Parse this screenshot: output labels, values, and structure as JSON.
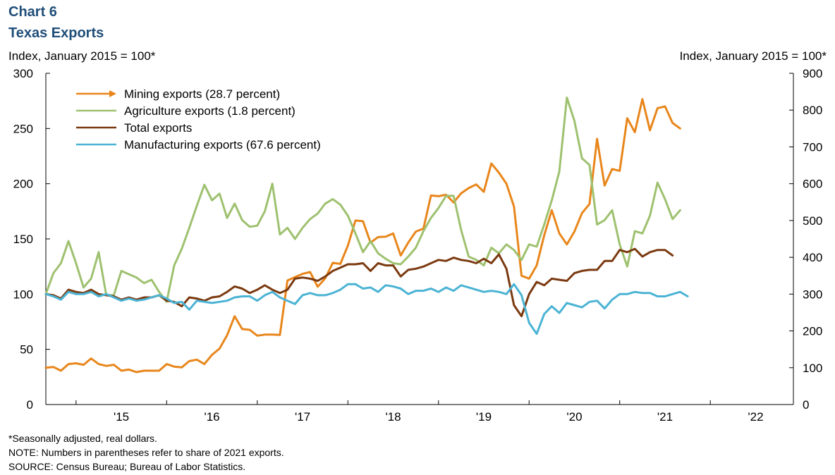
{
  "header": {
    "chart_number": "Chart 6",
    "title": "Texas Exports",
    "left_axis_label": "Index, January 2015 = 100*",
    "right_axis_label": "Index, January 2015 = 100*"
  },
  "footer": {
    "note1": "*Seasonally adjusted, real dollars.",
    "note2": "NOTE: Numbers in parentheses refer to share of 2021 exports.",
    "source": "SOURCE: Census Bureau; Bureau of Labor Statistics."
  },
  "chart_data": {
    "type": "line",
    "title": "Texas Exports",
    "x_tick_labels": [
      "'15",
      "'16",
      "'17",
      "'18",
      "'19",
      "'20",
      "'21",
      "'22"
    ],
    "x_tick_years": [
      2015,
      2016,
      2017,
      2018,
      2019,
      2020,
      2021,
      2022
    ],
    "x_range": {
      "start_year": 2014,
      "start_month": 9,
      "end_year": 2022,
      "end_month": 12
    },
    "left_axis": {
      "min": 0,
      "max": 300,
      "ticks": [
        0,
        50,
        100,
        150,
        200,
        250,
        300
      ]
    },
    "right_axis": {
      "min": 0,
      "max": 900,
      "ticks": [
        0,
        100,
        200,
        300,
        400,
        500,
        600,
        700,
        800,
        900
      ]
    },
    "legend_position": "top-left",
    "series": [
      {
        "name": "Mining exports (28.7 percent)",
        "color": "#e8861b",
        "axis": "right",
        "legend_marker": "arrow",
        "start": {
          "year": 2014,
          "month": 9
        },
        "values": [
          100,
          102,
          92,
          110,
          112,
          108,
          125,
          110,
          105,
          108,
          92,
          95,
          88,
          92,
          92,
          92,
          110,
          103,
          101,
          118,
          122,
          110,
          135,
          152,
          188,
          240,
          205,
          203,
          187,
          190,
          190,
          189,
          337,
          346,
          355,
          360,
          320,
          343,
          385,
          382,
          432,
          500,
          498,
          440,
          455,
          456,
          465,
          405,
          440,
          470,
          478,
          568,
          566,
          570,
          549,
          574,
          588,
          598,
          578,
          655,
          630,
          600,
          538,
          350,
          342,
          378,
          460,
          528,
          465,
          435,
          470,
          520,
          545,
          722,
          595,
          640,
          635,
          778,
          740,
          830,
          745,
          805,
          810,
          765,
          750
        ]
      },
      {
        "name": "Agriculture exports (1.8 percent)",
        "color": "#9ec16f",
        "axis": "left",
        "legend_marker": "line",
        "start": {
          "year": 2014,
          "month": 9
        },
        "values": [
          100,
          119,
          128,
          148,
          128,
          106,
          114,
          138,
          99,
          99,
          121,
          118,
          115,
          110,
          113,
          102,
          93,
          126,
          141,
          160,
          180,
          199,
          185,
          191,
          169,
          182,
          167,
          161,
          162,
          175,
          200,
          154,
          160,
          150,
          160,
          168,
          173,
          182,
          186,
          181,
          171,
          155,
          138,
          148,
          137,
          132,
          128,
          127,
          134,
          142,
          157,
          169,
          178,
          189,
          189,
          158,
          134,
          131,
          126,
          142,
          137,
          145,
          140,
          131,
          145,
          143,
          163,
          185,
          211,
          278,
          257,
          223,
          217,
          163,
          167,
          176,
          145,
          125,
          157,
          155,
          171,
          201,
          186,
          168,
          176
        ]
      },
      {
        "name": "Total exports",
        "color": "#7b3a10",
        "axis": "left",
        "legend_marker": "line",
        "start": {
          "year": 2014,
          "month": 9
        },
        "values": [
          100,
          99,
          96,
          104,
          102,
          101,
          104,
          100,
          99,
          98,
          95,
          97,
          95,
          97,
          97,
          99,
          94,
          93,
          89,
          97,
          96,
          94,
          97,
          98,
          102,
          107,
          105,
          101,
          104,
          108,
          104,
          101,
          104,
          114,
          115,
          114,
          112,
          116,
          121,
          124,
          127,
          127,
          128,
          121,
          128,
          126,
          126,
          116,
          122,
          123,
          125,
          128,
          131,
          130,
          133,
          131,
          130,
          128,
          132,
          128,
          136,
          123,
          90,
          80,
          100,
          111,
          108,
          114,
          113,
          112,
          119,
          121,
          122,
          122,
          130,
          130,
          140,
          138,
          141,
          134,
          138,
          140,
          140,
          135
        ]
      },
      {
        "name": "Manufacturing exports (67.6 percent)",
        "color": "#4bb3d4",
        "axis": "left",
        "legend_marker": "line",
        "start": {
          "year": 2014,
          "month": 9
        },
        "values": [
          100,
          98,
          95,
          102,
          100,
          100,
          102,
          98,
          100,
          97,
          94,
          96,
          94,
          95,
          97,
          99,
          96,
          92,
          93,
          86,
          94,
          93,
          92,
          93,
          94,
          97,
          98,
          98,
          94,
          99,
          102,
          97,
          94,
          91,
          99,
          101,
          99,
          99,
          101,
          104,
          109,
          109,
          105,
          106,
          102,
          108,
          107,
          105,
          100,
          103,
          103,
          105,
          102,
          106,
          103,
          108,
          106,
          104,
          102,
          103,
          102,
          100,
          109,
          99,
          74,
          64,
          82,
          89,
          83,
          92,
          90,
          88,
          93,
          94,
          87,
          95,
          100,
          100,
          102,
          101,
          101,
          98,
          98,
          100,
          102,
          98
        ]
      }
    ]
  }
}
